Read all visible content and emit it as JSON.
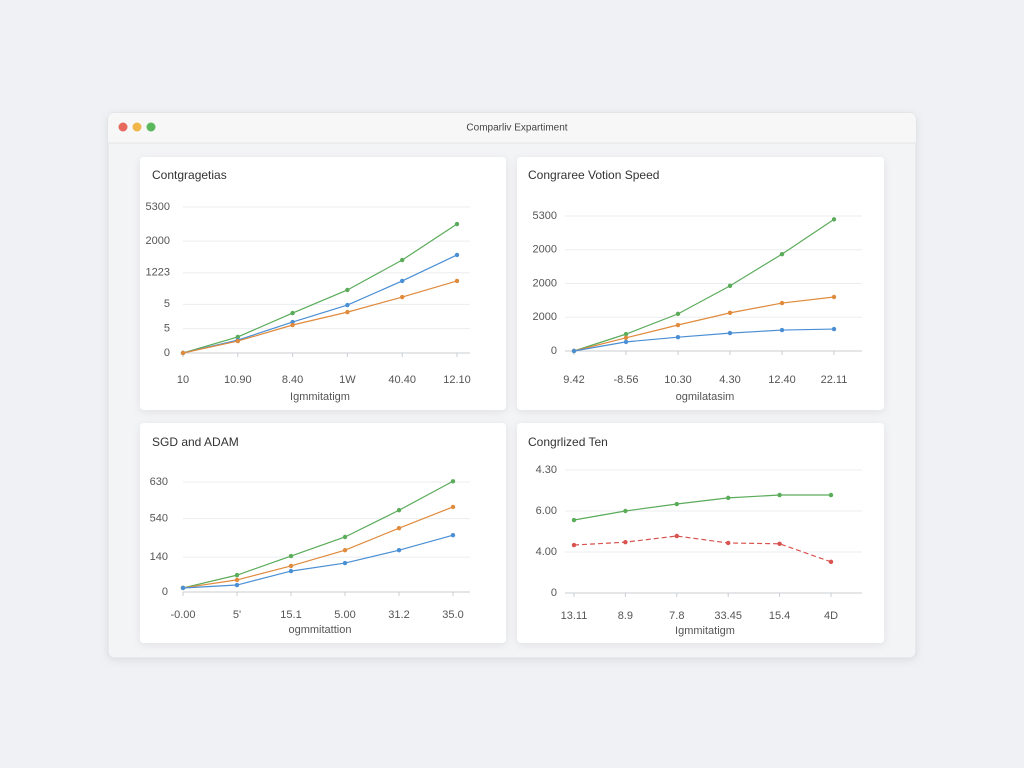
{
  "window_title": "Comparliv Expartiment",
  "chart_data": [
    {
      "type": "line",
      "title": "Contgragetias",
      "xlabel": "Igmmitatigm",
      "categories": [
        "10",
        "10.90",
        "8.40",
        "1W",
        "40.40",
        "12.10"
      ],
      "ylim": [
        0,
        6
      ],
      "yticks": [
        0,
        {
          "value": 1,
          "label": "5"
        },
        {
          "value": 2,
          "label": "5"
        },
        {
          "value": 3.3,
          "label": "1223"
        },
        {
          "value": 4.6,
          "label": "2000"
        },
        {
          "value": 6,
          "label": "5300"
        }
      ],
      "grid": true,
      "series": [
        {
          "color": "#5aab5a",
          "values": [
            0,
            0.66,
            1.64,
            2.59,
            3.82,
            5.3
          ]
        },
        {
          "color": "#4a8fd4",
          "values": [
            0,
            0.53,
            1.27,
            1.97,
            2.96,
            4.03
          ]
        },
        {
          "color": "#e08a3c",
          "values": [
            0,
            0.49,
            1.15,
            1.68,
            2.3,
            2.96
          ]
        }
      ]
    },
    {
      "type": "line",
      "title": "Congraree Votion Speed",
      "xlabel": "ogmilatasim",
      "categories": [
        "9.42",
        "-8.56",
        "10.30",
        "4.30",
        "12.40",
        "22.11"
      ],
      "ylim": [
        0,
        4
      ],
      "yticks": [
        0,
        {
          "value": 1,
          "label": "2000"
        },
        {
          "value": 2,
          "label": "2000"
        },
        {
          "value": 3,
          "label": "2000"
        },
        {
          "value": 4,
          "label": "5300"
        }
      ],
      "grid": true,
      "series": [
        {
          "color": "#5aab5a",
          "values": [
            0,
            0.5,
            1.1,
            1.93,
            2.87,
            3.9
          ]
        },
        {
          "color": "#e08a3c",
          "values": [
            0,
            0.39,
            0.77,
            1.13,
            1.42,
            1.6
          ]
        },
        {
          "color": "#4a8fd4",
          "values": [
            0,
            0.27,
            0.41,
            0.53,
            0.62,
            0.65
          ]
        }
      ]
    },
    {
      "type": "line",
      "title": "SGD and ADAM",
      "xlabel": "ogmmitattion",
      "categories": [
        "-0.00",
        "5'",
        "15.1",
        "5.00",
        "31.2",
        "35.0"
      ],
      "ylim": [
        0,
        3
      ],
      "yticks": [
        0,
        {
          "value": 0.95,
          "label": "140"
        },
        {
          "value": 2,
          "label": "540"
        },
        {
          "value": 3,
          "label": "630"
        }
      ],
      "grid": true,
      "series": [
        {
          "color": "#5aab5a",
          "values": [
            0.11,
            0.46,
            0.98,
            1.5,
            2.23,
            3.02
          ]
        },
        {
          "color": "#e08a3c",
          "values": [
            0.11,
            0.33,
            0.71,
            1.14,
            1.74,
            2.32
          ]
        },
        {
          "color": "#4a8fd4",
          "values": [
            0.11,
            0.19,
            0.57,
            0.79,
            1.14,
            1.55
          ]
        }
      ]
    },
    {
      "type": "line",
      "title": "Congrlized Ten",
      "xlabel": "Igmmitatigm",
      "categories": [
        "13.11",
        "8.9",
        "7.8",
        "33.45",
        "15.4",
        "4D"
      ],
      "ylim": [
        0,
        3
      ],
      "yticks": [
        0,
        {
          "value": 1,
          "label": "4.00"
        },
        {
          "value": 2,
          "label": "6.00"
        },
        {
          "value": 3,
          "label": "4.30"
        }
      ],
      "grid": true,
      "series": [
        {
          "color": "#5aab5a",
          "values": [
            1.78,
            2,
            2.17,
            2.32,
            2.39,
            2.39
          ]
        },
        {
          "color": "#d9534f",
          "dashed": true,
          "values": [
            1.17,
            1.24,
            1.39,
            1.22,
            1.2,
            0.76
          ]
        }
      ]
    }
  ]
}
